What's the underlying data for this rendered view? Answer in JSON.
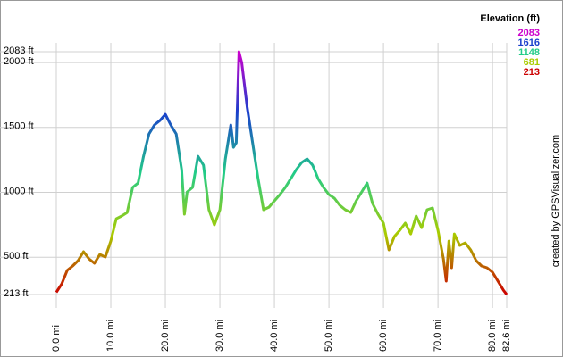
{
  "chart_data": {
    "type": "line",
    "x": [
      0,
      1,
      2,
      3,
      4,
      5,
      6,
      7,
      8,
      9,
      10,
      11,
      12,
      13,
      14,
      15,
      16,
      17,
      18,
      19,
      20,
      21,
      22,
      23,
      23.5,
      24,
      25,
      26,
      27,
      28,
      29,
      30,
      31,
      32,
      32.5,
      33,
      33.5,
      34,
      35,
      36,
      37,
      38,
      39,
      40,
      41,
      42,
      43,
      44,
      45,
      46,
      47,
      48,
      49,
      50,
      51,
      52,
      53,
      54,
      55,
      56,
      57,
      58,
      59,
      60,
      61,
      62,
      63,
      64,
      65,
      66,
      67,
      68,
      69,
      70,
      71,
      71.5,
      72,
      72.5,
      73,
      74,
      75,
      76,
      77,
      78,
      79,
      80,
      81,
      82,
      82.6
    ],
    "values": [
      230,
      295,
      399,
      433,
      474,
      543,
      488,
      454,
      522,
      502,
      625,
      797,
      818,
      845,
      1038,
      1072,
      1278,
      1450,
      1519,
      1553,
      1601,
      1519,
      1450,
      1175,
      832,
      1003,
      1038,
      1278,
      1210,
      866,
      749,
      866,
      1258,
      1519,
      1347,
      1381,
      2083,
      2000,
      1656,
      1381,
      1106,
      866,
      886,
      935,
      983,
      1038,
      1106,
      1175,
      1230,
      1258,
      1210,
      1106,
      1038,
      983,
      955,
      900,
      866,
      845,
      935,
      1003,
      1072,
      914,
      832,
      763,
      557,
      660,
      708,
      763,
      680,
      818,
      728,
      866,
      880,
      708,
      488,
      316,
      625,
      419,
      680,
      591,
      611,
      557,
      474,
      433,
      419,
      385,
      316,
      247,
      213
    ],
    "xlim": [
      0,
      82.6
    ],
    "ylim": [
      213,
      2083
    ],
    "xticks": [
      {
        "value": 0,
        "label": "0.0 mi"
      },
      {
        "value": 10,
        "label": "10.0 mi"
      },
      {
        "value": 20,
        "label": "20.0 mi"
      },
      {
        "value": 30,
        "label": "30.0 mi"
      },
      {
        "value": 40,
        "label": "40.0 mi"
      },
      {
        "value": 50,
        "label": "50.0 mi"
      },
      {
        "value": 60,
        "label": "60.0 mi"
      },
      {
        "value": 70,
        "label": "70.0 mi"
      },
      {
        "value": 80,
        "label": "80.0 mi"
      },
      {
        "value": 82.6,
        "label": "82.6 mi"
      }
    ],
    "yticks": [
      {
        "value": 213,
        "label": "213 ft"
      },
      {
        "value": 500,
        "label": "500 ft"
      },
      {
        "value": 1000,
        "label": "1000 ft"
      },
      {
        "value": 1500,
        "label": "1500 ft"
      },
      {
        "value": 2000,
        "label": "2000 ft"
      },
      {
        "value": 2083,
        "label": "2083 ft"
      }
    ],
    "grid": true,
    "legend": {
      "title": "Elevation (ft)",
      "position": "top-right",
      "entries": [
        {
          "value": 2083,
          "color": "#cc00cc"
        },
        {
          "value": 1616,
          "color": "#1a3fcc"
        },
        {
          "value": 1148,
          "color": "#22cc88"
        },
        {
          "value": 681,
          "color": "#aacc00"
        },
        {
          "value": 213,
          "color": "#cc0000"
        }
      ]
    },
    "watermark": "created by GPSVisualizer.com"
  }
}
